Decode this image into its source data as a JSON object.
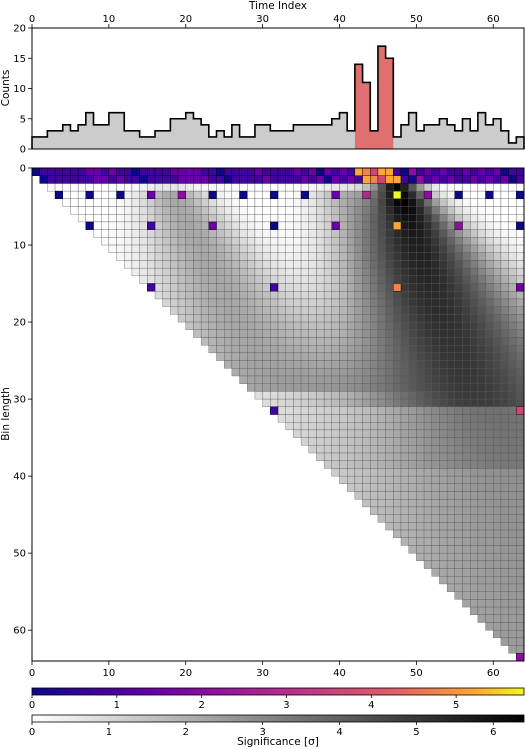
{
  "chart_data": [
    {
      "type": "histogram",
      "xlabel": "Time Index",
      "ylabel": "Counts",
      "xlim": [
        0,
        64
      ],
      "ylim": [
        0,
        20
      ],
      "x_ticks": [
        0,
        10,
        20,
        30,
        40,
        50,
        60
      ],
      "y_ticks": [
        0,
        5,
        10,
        15,
        20
      ],
      "values": [
        2,
        2,
        3,
        3,
        4,
        3,
        4,
        6,
        4,
        4,
        6,
        6,
        3,
        3,
        2,
        2,
        3,
        3,
        5,
        5,
        6,
        5,
        4,
        2,
        3,
        2,
        4,
        2,
        2,
        4,
        4,
        3,
        3,
        3,
        4,
        4,
        4,
        4,
        4,
        5,
        6,
        3,
        14,
        11,
        3,
        17,
        15,
        2,
        4,
        6,
        3,
        4,
        4,
        5,
        4,
        3,
        5,
        3,
        6,
        4,
        5,
        3,
        1,
        2
      ],
      "highlight_range": [
        42,
        47
      ],
      "fill_color": "#cccccc",
      "highlight_color": "#e07070"
    },
    {
      "type": "heatmap",
      "xlabel": "",
      "ylabel": "Bin length",
      "xlim": [
        0,
        64
      ],
      "ylim": [
        64,
        0
      ],
      "x_ticks": [
        0,
        10,
        20,
        30,
        40,
        50,
        60
      ],
      "y_ticks": [
        0,
        10,
        20,
        30,
        40,
        50,
        60
      ],
      "peak_bin": 46,
      "grid": true
    }
  ],
  "colorbars": {
    "plasma": {
      "ticks": [
        "0",
        "1",
        "2",
        "3",
        "4",
        "5"
      ],
      "range": [
        0,
        5.8
      ]
    },
    "gray": {
      "ticks": [
        "0",
        "1",
        "2",
        "3",
        "4",
        "5",
        "6"
      ],
      "range": [
        0,
        6.4
      ],
      "label": "Significance [σ]"
    }
  },
  "labels": {
    "top_xlabel": "Time Index",
    "top_ylabel": "Counts",
    "heat_ylabel": "Bin length",
    "cbar_label": "Significance [σ]"
  }
}
